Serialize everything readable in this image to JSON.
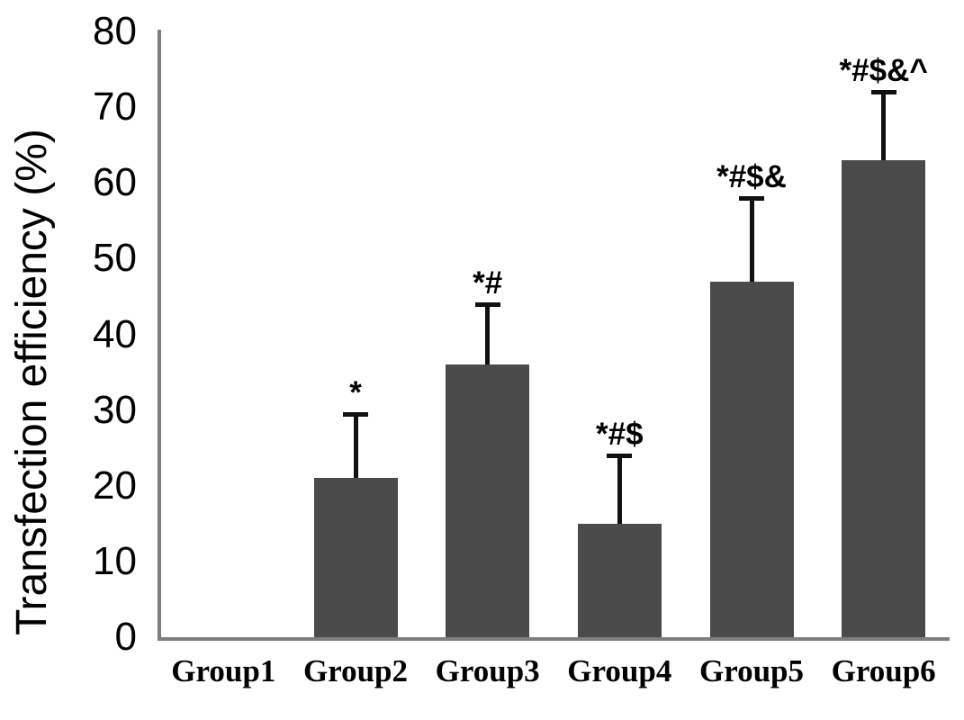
{
  "figure": {
    "background_color": "#ffffff"
  },
  "chart_data": {
    "type": "bar",
    "title": "",
    "xlabel": "",
    "ylabel": "Transfection efficiency (%)",
    "categories": [
      "Group1",
      "Group2",
      "Group3",
      "Group4",
      "Group5",
      "Group6"
    ],
    "values": [
      0,
      21,
      36,
      15,
      47,
      63
    ],
    "upper_errors": [
      0,
      8.5,
      8,
      9,
      11,
      9
    ],
    "annotations": [
      "",
      "*",
      "*#",
      "*#$",
      "*#$&",
      "*#$&^"
    ],
    "ylim": [
      0,
      80
    ],
    "yticks": [
      0,
      10,
      20,
      30,
      40,
      50,
      60,
      70,
      80
    ],
    "grid": false,
    "legend": null,
    "bar_color": "#4a4a4a",
    "axis_color": "#7f7f7f",
    "error_bar_color": "#111111",
    "text_color": "#000000"
  }
}
